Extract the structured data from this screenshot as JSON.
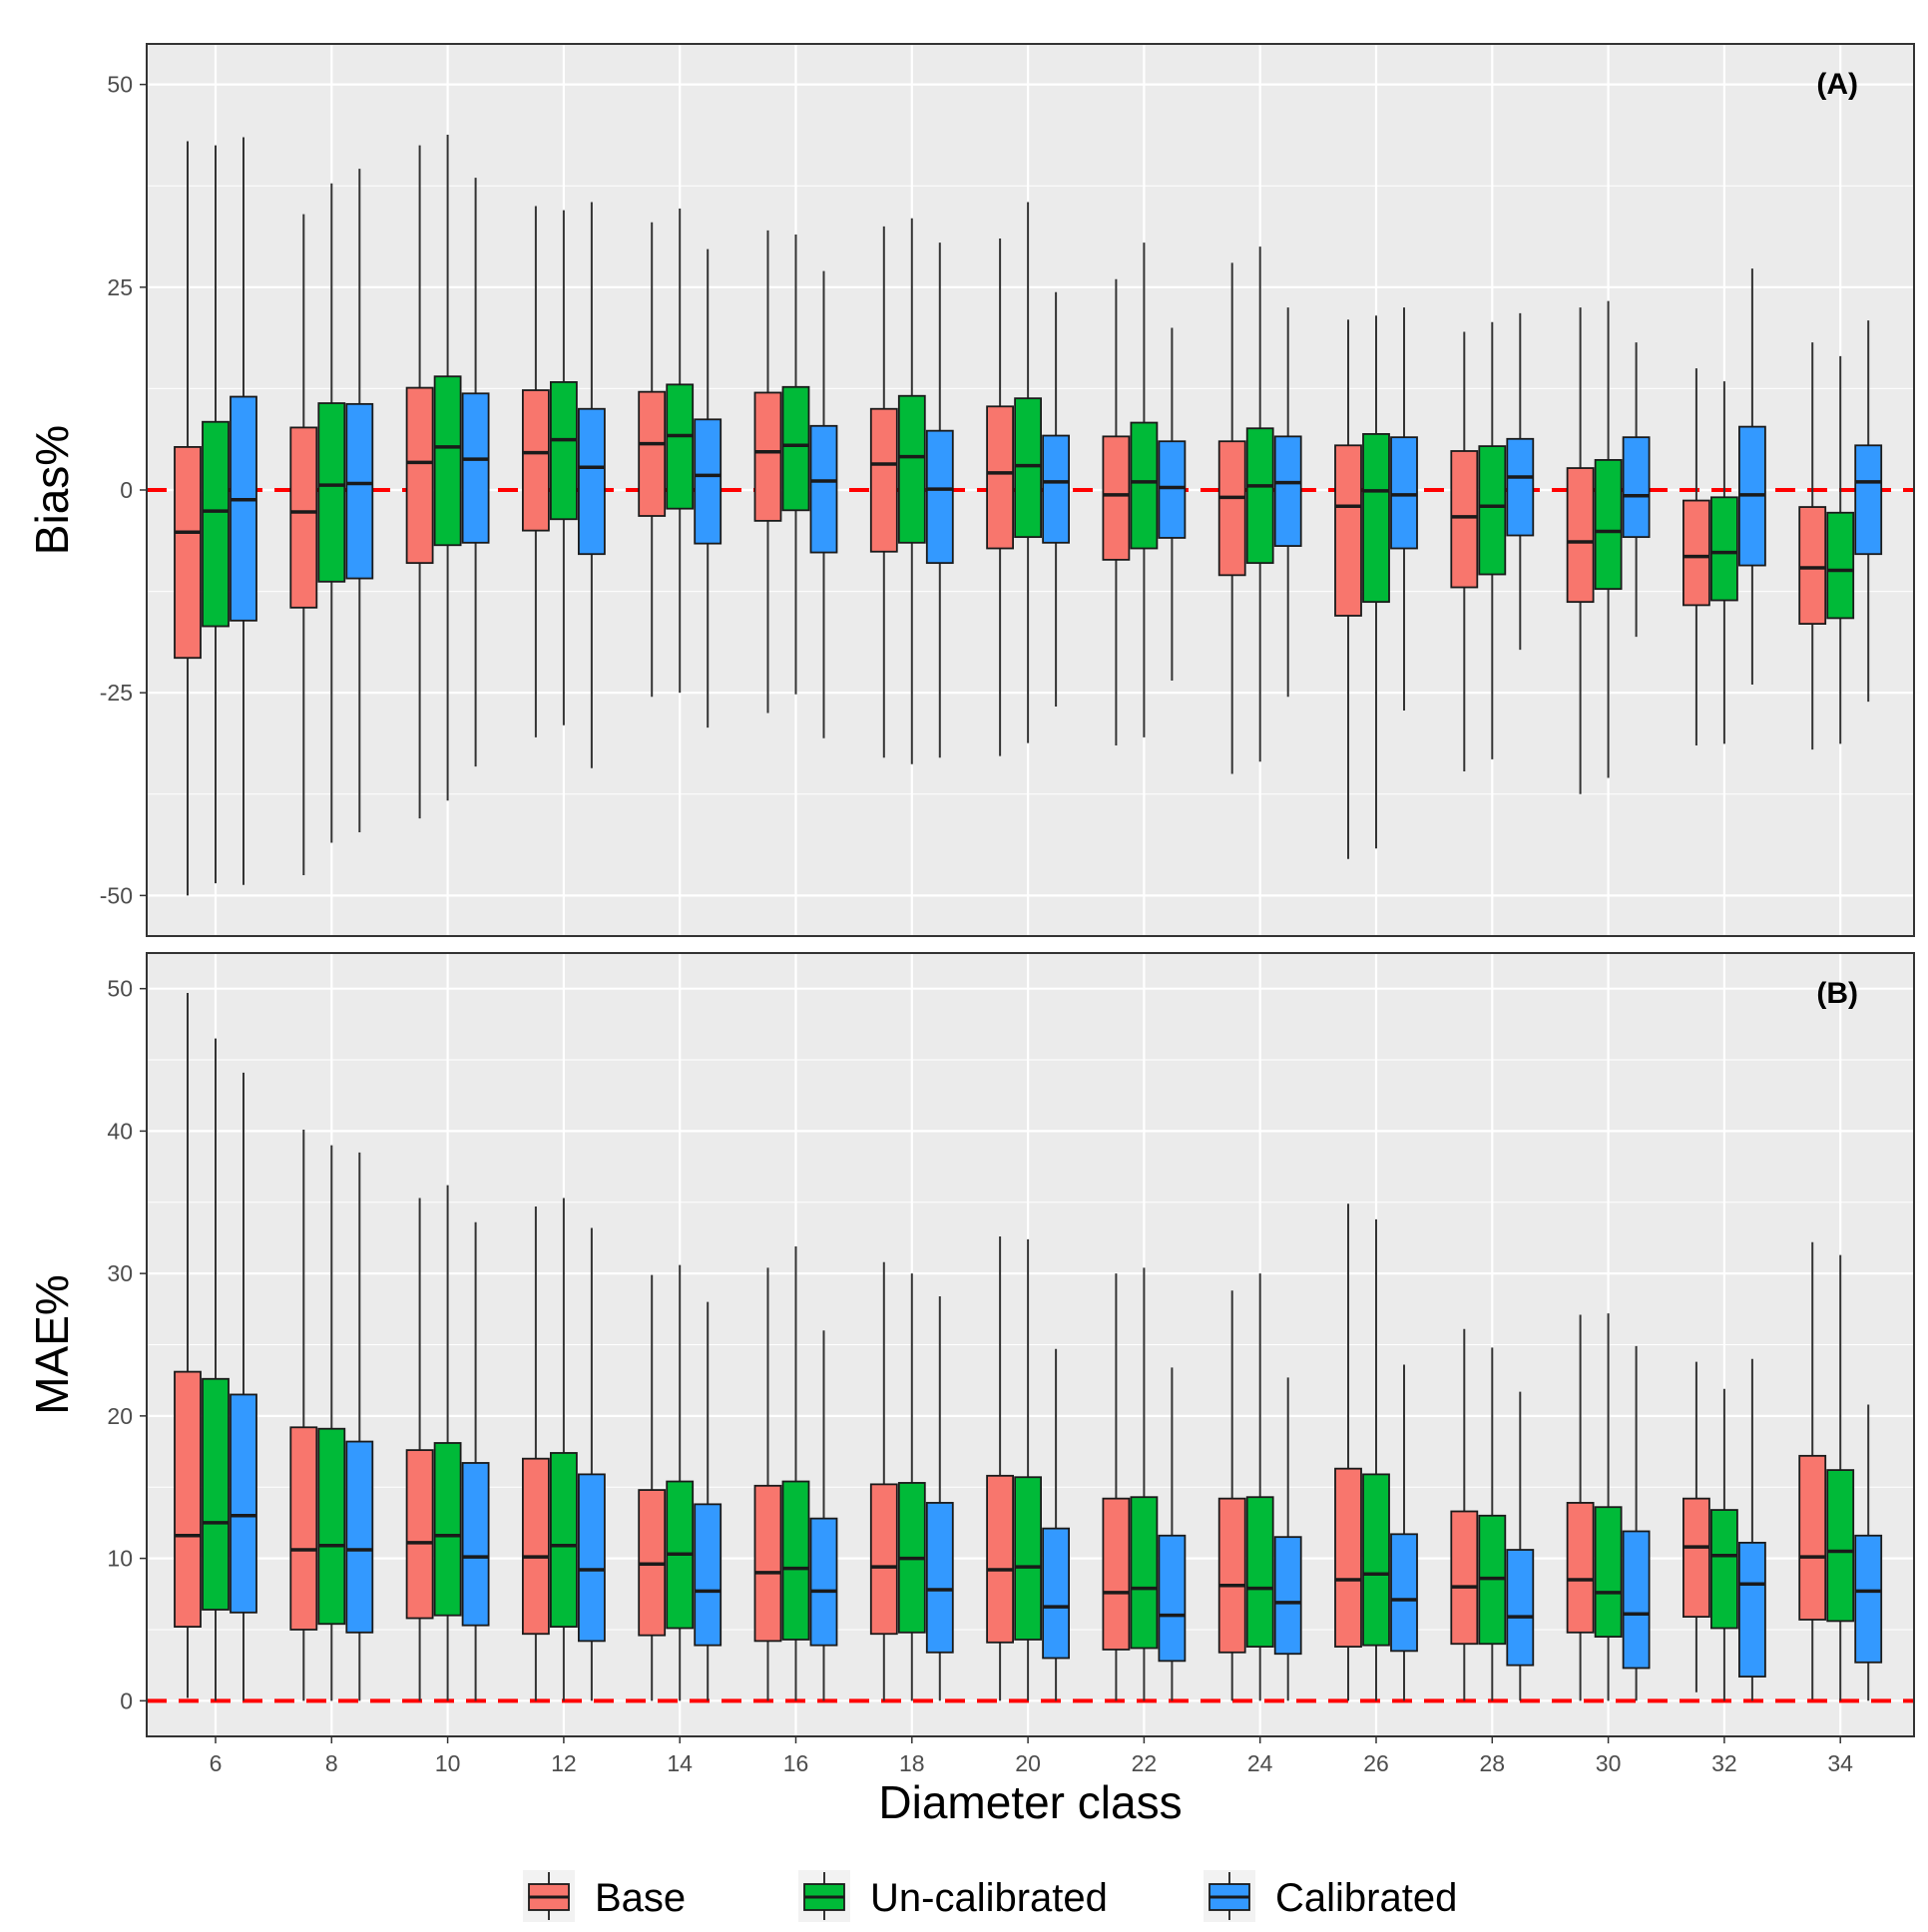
{
  "chart_data": [
    {
      "type": "boxplot",
      "panel_label": "(A)",
      "ylabel": "Bias%",
      "xlabel": "Diameter class",
      "ylim": [
        -55,
        55
      ],
      "yticks": [
        "50",
        "25",
        "0",
        "-25",
        "-50"
      ],
      "ytick_values": [
        50,
        25,
        0,
        -25,
        -50
      ],
      "reference_line": 0,
      "categories": [
        "6",
        "8",
        "10",
        "12",
        "14",
        "16",
        "18",
        "20",
        "22",
        "24",
        "26",
        "28",
        "30",
        "32",
        "34"
      ],
      "series": [
        {
          "name": "Base",
          "boxes": [
            {
              "min": -50,
              "q1": -20.7,
              "median": -5.2,
              "q3": 5.3,
              "max": 43
            },
            {
              "min": -47.5,
              "q1": -14.5,
              "median": -2.7,
              "q3": 7.7,
              "max": 34
            },
            {
              "min": -40.5,
              "q1": -9,
              "median": 3.4,
              "q3": 12.6,
              "max": 42.5
            },
            {
              "min": -30.5,
              "q1": -5,
              "median": 4.6,
              "q3": 12.3,
              "max": 35
            },
            {
              "min": -25.5,
              "q1": -3.2,
              "median": 5.7,
              "q3": 12.1,
              "max": 33
            },
            {
              "min": -27.5,
              "q1": -3.8,
              "median": 4.7,
              "q3": 12,
              "max": 32
            },
            {
              "min": -33,
              "q1": -7.6,
              "median": 3.2,
              "q3": 10,
              "max": 32.5
            },
            {
              "min": -32.8,
              "q1": -7.2,
              "median": 2.1,
              "q3": 10.3,
              "max": 31
            },
            {
              "min": -31.5,
              "q1": -8.6,
              "median": -0.6,
              "q3": 6.6,
              "max": 26
            },
            {
              "min": -35,
              "q1": -10.5,
              "median": -0.9,
              "q3": 6,
              "max": 28
            },
            {
              "min": -45.5,
              "q1": -15.5,
              "median": -2,
              "q3": 5.5,
              "max": 21
            },
            {
              "min": -34.7,
              "q1": -12,
              "median": -3.3,
              "q3": 4.8,
              "max": 19.5
            },
            {
              "min": -37.5,
              "q1": -13.8,
              "median": -6.4,
              "q3": 2.7,
              "max": 22.5
            },
            {
              "min": -31.5,
              "q1": -14.2,
              "median": -8.2,
              "q3": -1.3,
              "max": 15
            },
            {
              "min": -32,
              "q1": -16.5,
              "median": -9.6,
              "q3": -2.1,
              "max": 18.2
            }
          ]
        },
        {
          "name": "Un-calibrated",
          "boxes": [
            {
              "min": -48.5,
              "q1": -16.8,
              "median": -2.6,
              "q3": 8.4,
              "max": 42.5
            },
            {
              "min": -43.5,
              "q1": -11.3,
              "median": 0.6,
              "q3": 10.7,
              "max": 37.8
            },
            {
              "min": -38.3,
              "q1": -6.8,
              "median": 5.3,
              "q3": 14,
              "max": 43.8
            },
            {
              "min": -29,
              "q1": -3.6,
              "median": 6.2,
              "q3": 13.3,
              "max": 34.5
            },
            {
              "min": -25,
              "q1": -2.3,
              "median": 6.7,
              "q3": 13,
              "max": 34.7
            },
            {
              "min": -25.2,
              "q1": -2.5,
              "median": 5.5,
              "q3": 12.7,
              "max": 31.5
            },
            {
              "min": -33.8,
              "q1": -6.5,
              "median": 4.1,
              "q3": 11.6,
              "max": 33.5
            },
            {
              "min": -31.2,
              "q1": -5.8,
              "median": 3,
              "q3": 11.3,
              "max": 35.5
            },
            {
              "min": -30.5,
              "q1": -7.2,
              "median": 1,
              "q3": 8.3,
              "max": 30.5
            },
            {
              "min": -33.5,
              "q1": -9,
              "median": 0.5,
              "q3": 7.6,
              "max": 30
            },
            {
              "min": -44.2,
              "q1": -13.8,
              "median": -0.1,
              "q3": 6.9,
              "max": 21.5
            },
            {
              "min": -33.2,
              "q1": -10.4,
              "median": -2,
              "q3": 5.4,
              "max": 20.7
            },
            {
              "min": -35.5,
              "q1": -12.2,
              "median": -5.1,
              "q3": 3.7,
              "max": 23.3
            },
            {
              "min": -31.3,
              "q1": -13.6,
              "median": -7.7,
              "q3": -0.9,
              "max": 13.4
            },
            {
              "min": -31.3,
              "q1": -15.8,
              "median": -9.9,
              "q3": -2.8,
              "max": 16.5
            }
          ]
        },
        {
          "name": "Calibrated",
          "boxes": [
            {
              "min": -48.7,
              "q1": -16.1,
              "median": -1.2,
              "q3": 11.5,
              "max": 43.5
            },
            {
              "min": -42.2,
              "q1": -10.9,
              "median": 0.8,
              "q3": 10.6,
              "max": 39.6
            },
            {
              "min": -34.1,
              "q1": -6.5,
              "median": 3.8,
              "q3": 11.9,
              "max": 38.5
            },
            {
              "min": -34.3,
              "q1": -7.9,
              "median": 2.8,
              "q3": 10,
              "max": 35.5
            },
            {
              "min": -29.3,
              "q1": -6.6,
              "median": 1.8,
              "q3": 8.7,
              "max": 29.7
            },
            {
              "min": -30.6,
              "q1": -7.7,
              "median": 1.1,
              "q3": 7.9,
              "max": 27
            },
            {
              "min": -33,
              "q1": -9,
              "median": 0.1,
              "q3": 7.3,
              "max": 30.5
            },
            {
              "min": -26.7,
              "q1": -6.5,
              "median": 1,
              "q3": 6.7,
              "max": 24.4
            },
            {
              "min": -23.5,
              "q1": -5.9,
              "median": 0.3,
              "q3": 6,
              "max": 20
            },
            {
              "min": -25.5,
              "q1": -6.9,
              "median": 0.9,
              "q3": 6.6,
              "max": 22.5
            },
            {
              "min": -27.2,
              "q1": -7.2,
              "median": -0.6,
              "q3": 6.5,
              "max": 22.5
            },
            {
              "min": -19.7,
              "q1": -5.6,
              "median": 1.6,
              "q3": 6.3,
              "max": 21.8
            },
            {
              "min": -18.1,
              "q1": -5.8,
              "median": -0.7,
              "q3": 6.5,
              "max": 18.2
            },
            {
              "min": -24,
              "q1": -9.3,
              "median": -0.6,
              "q3": 7.8,
              "max": 27.3
            },
            {
              "min": -26.1,
              "q1": -7.9,
              "median": 1,
              "q3": 5.5,
              "max": 20.9
            }
          ]
        }
      ]
    },
    {
      "type": "boxplot",
      "panel_label": "(B)",
      "ylabel": "MAE%",
      "xlabel": "Diameter class",
      "ylim": [
        -2.5,
        52.5
      ],
      "yticks": [
        "50",
        "40",
        "30",
        "20",
        "10",
        "0"
      ],
      "ytick_values": [
        50,
        40,
        30,
        20,
        10,
        0
      ],
      "reference_line": 0,
      "categories": [
        "6",
        "8",
        "10",
        "12",
        "14",
        "16",
        "18",
        "20",
        "22",
        "24",
        "26",
        "28",
        "30",
        "32",
        "34"
      ],
      "series": [
        {
          "name": "Base",
          "boxes": [
            {
              "min": 0.2,
              "q1": 5.2,
              "median": 11.6,
              "q3": 23.1,
              "max": 49.7
            },
            {
              "min": 0,
              "q1": 5,
              "median": 10.6,
              "q3": 19.2,
              "max": 40.1
            },
            {
              "min": 0,
              "q1": 5.8,
              "median": 11.1,
              "q3": 17.6,
              "max": 35.3
            },
            {
              "min": 0,
              "q1": 4.7,
              "median": 10.1,
              "q3": 17,
              "max": 34.7
            },
            {
              "min": 0,
              "q1": 4.6,
              "median": 9.6,
              "q3": 14.8,
              "max": 29.9
            },
            {
              "min": 0,
              "q1": 4.2,
              "median": 9,
              "q3": 15.1,
              "max": 30.4
            },
            {
              "min": 0,
              "q1": 4.7,
              "median": 9.4,
              "q3": 15.2,
              "max": 30.8
            },
            {
              "min": 0,
              "q1": 4.1,
              "median": 9.2,
              "q3": 15.8,
              "max": 32.6
            },
            {
              "min": 0,
              "q1": 3.6,
              "median": 7.6,
              "q3": 14.2,
              "max": 30
            },
            {
              "min": 0,
              "q1": 3.4,
              "median": 8.1,
              "q3": 14.2,
              "max": 28.8
            },
            {
              "min": 0,
              "q1": 3.8,
              "median": 8.5,
              "q3": 16.3,
              "max": 34.9
            },
            {
              "min": 0,
              "q1": 4,
              "median": 8,
              "q3": 13.3,
              "max": 26.1
            },
            {
              "min": 0,
              "q1": 4.8,
              "median": 8.5,
              "q3": 13.9,
              "max": 27.1
            },
            {
              "min": 0.6,
              "q1": 5.9,
              "median": 10.8,
              "q3": 14.2,
              "max": 23.8
            },
            {
              "min": 0.1,
              "q1": 5.7,
              "median": 10.1,
              "q3": 17.2,
              "max": 32.2
            }
          ]
        },
        {
          "name": "Un-calibrated",
          "boxes": [
            {
              "min": 0,
              "q1": 6.4,
              "median": 12.5,
              "q3": 22.6,
              "max": 46.5
            },
            {
              "min": 0,
              "q1": 5.4,
              "median": 10.9,
              "q3": 19.1,
              "max": 39
            },
            {
              "min": 0,
              "q1": 6,
              "median": 11.6,
              "q3": 18.1,
              "max": 36.2
            },
            {
              "min": 0,
              "q1": 5.2,
              "median": 10.9,
              "q3": 17.4,
              "max": 35.3
            },
            {
              "min": 0,
              "q1": 5.1,
              "median": 10.3,
              "q3": 15.4,
              "max": 30.6
            },
            {
              "min": 0,
              "q1": 4.3,
              "median": 9.3,
              "q3": 15.4,
              "max": 31.9
            },
            {
              "min": 0,
              "q1": 4.8,
              "median": 10,
              "q3": 15.3,
              "max": 30
            },
            {
              "min": 0,
              "q1": 4.3,
              "median": 9.4,
              "q3": 15.7,
              "max": 32.4
            },
            {
              "min": 0,
              "q1": 3.7,
              "median": 7.9,
              "q3": 14.3,
              "max": 30.4
            },
            {
              "min": 0,
              "q1": 3.8,
              "median": 7.9,
              "q3": 14.3,
              "max": 30
            },
            {
              "min": 0,
              "q1": 3.9,
              "median": 8.9,
              "q3": 15.9,
              "max": 33.8
            },
            {
              "min": 0,
              "q1": 4,
              "median": 8.6,
              "q3": 13,
              "max": 24.8
            },
            {
              "min": 0,
              "q1": 4.5,
              "median": 7.6,
              "q3": 13.6,
              "max": 27.2
            },
            {
              "min": 0,
              "q1": 5.1,
              "median": 10.2,
              "q3": 13.4,
              "max": 21.9
            },
            {
              "min": 0,
              "q1": 5.6,
              "median": 10.5,
              "q3": 16.2,
              "max": 31.3
            }
          ]
        },
        {
          "name": "Calibrated",
          "boxes": [
            {
              "min": 0,
              "q1": 6.2,
              "median": 13,
              "q3": 21.5,
              "max": 44.1
            },
            {
              "min": 0,
              "q1": 4.8,
              "median": 10.6,
              "q3": 18.2,
              "max": 38.5
            },
            {
              "min": 0,
              "q1": 5.3,
              "median": 10.1,
              "q3": 16.7,
              "max": 33.6
            },
            {
              "min": 0,
              "q1": 4.2,
              "median": 9.2,
              "q3": 15.9,
              "max": 33.2
            },
            {
              "min": 0,
              "q1": 3.9,
              "median": 7.7,
              "q3": 13.8,
              "max": 28
            },
            {
              "min": 0,
              "q1": 3.9,
              "median": 7.7,
              "q3": 12.8,
              "max": 26
            },
            {
              "min": 0,
              "q1": 3.4,
              "median": 7.8,
              "q3": 13.9,
              "max": 28.4
            },
            {
              "min": 0,
              "q1": 3,
              "median": 6.6,
              "q3": 12.1,
              "max": 24.7
            },
            {
              "min": 0,
              "q1": 2.8,
              "median": 6,
              "q3": 11.6,
              "max": 23.4
            },
            {
              "min": 0,
              "q1": 3.3,
              "median": 6.9,
              "q3": 11.5,
              "max": 22.7
            },
            {
              "min": 0,
              "q1": 3.5,
              "median": 7.1,
              "q3": 11.7,
              "max": 23.6
            },
            {
              "min": 0,
              "q1": 2.5,
              "median": 5.9,
              "q3": 10.6,
              "max": 21.7
            },
            {
              "min": 0,
              "q1": 2.3,
              "median": 6.1,
              "q3": 11.9,
              "max": 24.9
            },
            {
              "min": 0,
              "q1": 1.7,
              "median": 8.2,
              "q3": 11.1,
              "max": 24
            },
            {
              "min": 0,
              "q1": 2.7,
              "median": 7.7,
              "q3": 11.6,
              "max": 20.8
            }
          ]
        }
      ]
    }
  ],
  "legend": [
    {
      "label": "Base",
      "color": "#f8766d"
    },
    {
      "label": "Un-calibrated",
      "color": "#00ba38"
    },
    {
      "label": "Calibrated",
      "color": "#3399ff"
    }
  ],
  "colors": {
    "panel_bg": "#ebebeb",
    "grid": "#ffffff",
    "reference_line": "#ff0000",
    "box_edge": "#1a1a1a",
    "whisker": "#333333"
  }
}
